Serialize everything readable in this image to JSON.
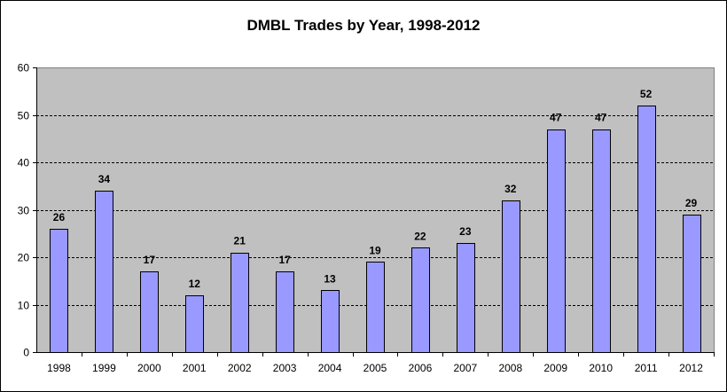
{
  "chart_data": {
    "type": "bar",
    "title": "DMBL Trades by Year, 1998-2012",
    "xlabel": "",
    "ylabel": "",
    "categories": [
      "1998",
      "1999",
      "2000",
      "2001",
      "2002",
      "2003",
      "2004",
      "2005",
      "2006",
      "2007",
      "2008",
      "2009",
      "2010",
      "2011",
      "2012"
    ],
    "values": [
      26,
      34,
      17,
      12,
      21,
      17,
      13,
      19,
      22,
      23,
      32,
      47,
      47,
      52,
      29
    ],
    "ylim": [
      0,
      60
    ],
    "yticks": [
      0,
      10,
      20,
      30,
      40,
      50,
      60
    ],
    "grid": "horizontal dashed",
    "legend": "none",
    "data_labels": true
  },
  "colors": {
    "plot_background": "#c0c0c0",
    "bar_fill": "#9999ff",
    "bar_stroke": "#000000",
    "gridline": "#000000"
  }
}
